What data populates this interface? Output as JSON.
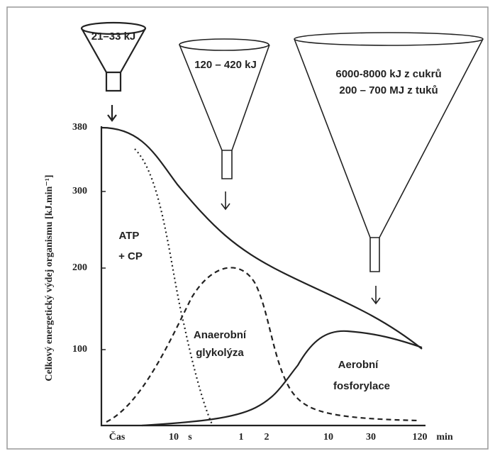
{
  "funnels": [
    {
      "lines": [
        "21–33 kJ"
      ]
    },
    {
      "lines": [
        "120 – 420 kJ"
      ]
    },
    {
      "lines": [
        "6000-8000 kJ z cukrů",
        "200 – 700 MJ z tuků"
      ]
    }
  ],
  "axis": {
    "y_title": "Celkový energetický výdej organismu [kJ.min⁻¹]",
    "y_ticks": [
      "380",
      "300",
      "200",
      "100"
    ],
    "x_ticks": [
      "Čas",
      "10",
      "s",
      "1",
      "2",
      "10",
      "30",
      "120",
      "min"
    ]
  },
  "regions": [
    {
      "lines": [
        "ATP",
        "+ CP"
      ]
    },
    {
      "lines": [
        "Anaerobní",
        "glykolýza"
      ]
    },
    {
      "lines": [
        "Aerobní",
        "fosforylace"
      ]
    }
  ]
}
